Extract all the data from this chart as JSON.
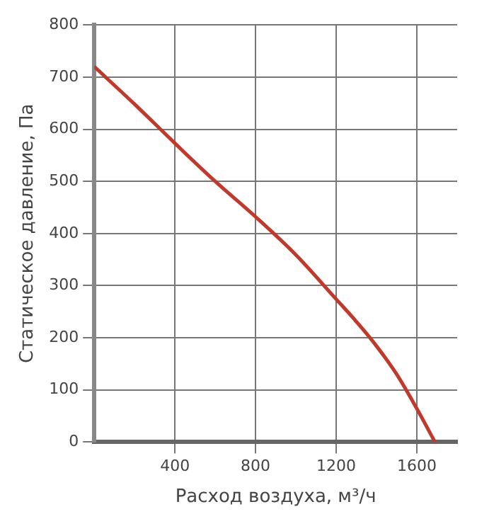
{
  "chart_data": {
    "type": "line",
    "xlabel": "Расход воздуха, м³/ч",
    "ylabel": "Статическое давление, Па",
    "x": [
      0,
      200,
      400,
      600,
      800,
      1000,
      1200,
      1300,
      1400,
      1500,
      1600,
      1690
    ],
    "series": [
      {
        "color": "#c0392b",
        "values": [
          720,
          648,
          573,
          500,
          432,
          359,
          274,
          231,
          184,
          130,
          64,
          0
        ]
      }
    ],
    "xlim": [
      0,
      1800
    ],
    "xticks": [
      400,
      800,
      1200,
      1600
    ],
    "ylim": [
      0,
      800
    ],
    "yticks": [
      0,
      100,
      200,
      300,
      400,
      500,
      600,
      700,
      800
    ],
    "grid": true,
    "legend": false,
    "marker": "none",
    "line_style": "solid"
  }
}
